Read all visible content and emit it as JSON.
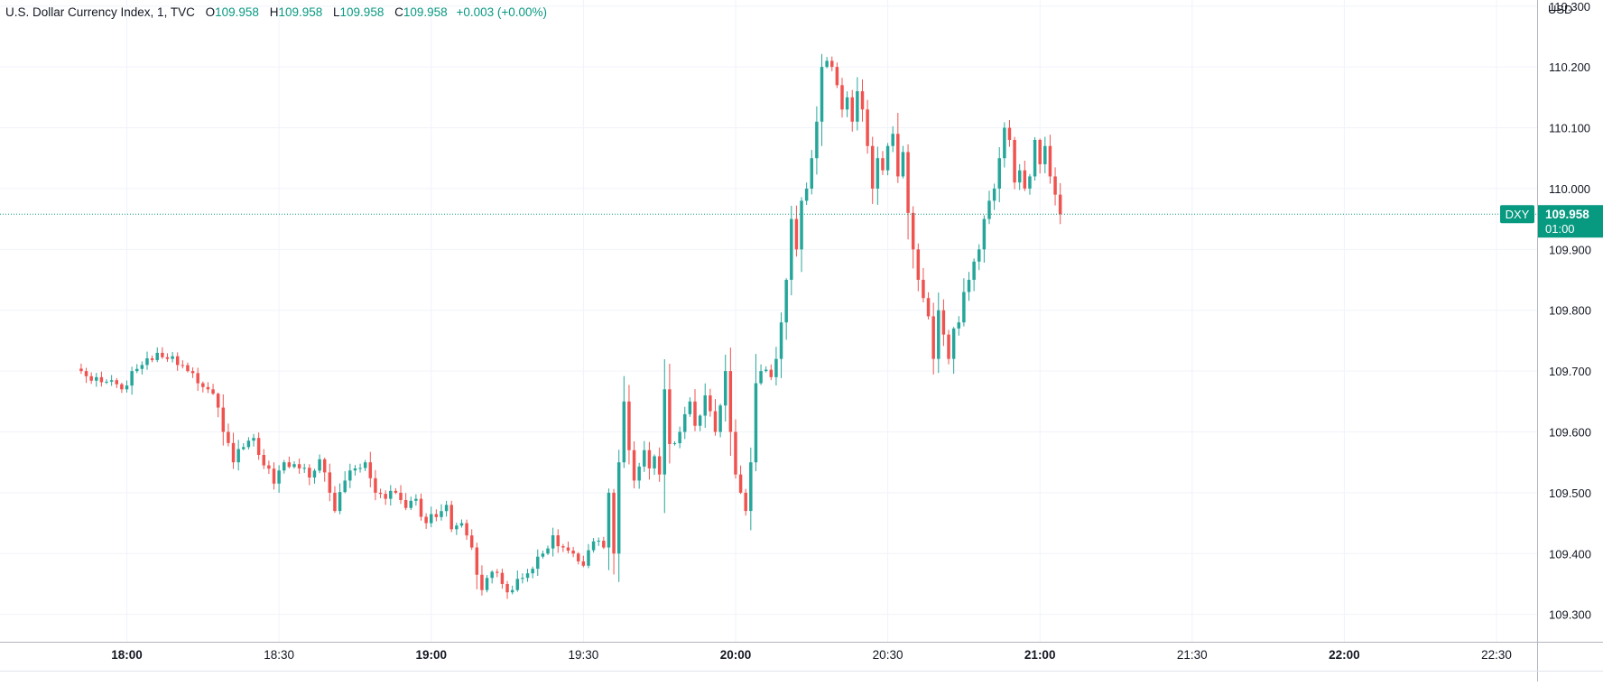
{
  "legend": {
    "name": "U.S. Dollar Currency Index, 1, TVC",
    "o_label": "O",
    "o": "109.958",
    "h_label": "H",
    "h": "109.958",
    "l_label": "L",
    "l": "109.958",
    "c_label": "C",
    "c": "109.958",
    "change": "+0.003 (+0.00%)"
  },
  "currency": "USD",
  "price_tag": {
    "symbol": "DXY",
    "price": "109.958",
    "countdown": "01:00"
  },
  "colors": {
    "up": "#26a69a",
    "down": "#ef5350",
    "price_tag_bg": "#089981",
    "grid": "#f0f3fa",
    "axis_text": "#131722",
    "price_line": "#089981"
  },
  "chart_data": {
    "type": "candlestick",
    "title": "U.S. Dollar Currency Index",
    "interval": "1",
    "source": "TVC",
    "ylim": [
      109.255,
      110.31
    ],
    "y_ticks": [
      "110.300",
      "110.200",
      "110.100",
      "110.000",
      "109.900",
      "109.800",
      "109.700",
      "109.600",
      "109.500",
      "109.400",
      "109.300"
    ],
    "x_range_minutes": [
      1055,
      1358
    ],
    "x_ticks": [
      {
        "label": "18:00",
        "minute": 1080,
        "bold": true
      },
      {
        "label": "18:30",
        "minute": 1110,
        "bold": false
      },
      {
        "label": "19:00",
        "minute": 1140,
        "bold": true
      },
      {
        "label": "19:30",
        "minute": 1170,
        "bold": false
      },
      {
        "label": "20:00",
        "minute": 1200,
        "bold": true
      },
      {
        "label": "20:30",
        "minute": 1230,
        "bold": false
      },
      {
        "label": "21:00",
        "minute": 1260,
        "bold": true
      },
      {
        "label": "21:30",
        "minute": 1290,
        "bold": false
      },
      {
        "label": "22:00",
        "minute": 1320,
        "bold": true
      },
      {
        "label": "22:30",
        "minute": 1350,
        "bold": false
      }
    ],
    "start_time": "17:51",
    "last_price": 109.958,
    "close_path": [
      [
        0,
        109.7
      ],
      [
        3,
        109.69
      ],
      [
        6,
        109.685
      ],
      [
        8,
        109.67
      ],
      [
        10,
        109.7
      ],
      [
        12,
        109.71
      ],
      [
        15,
        109.73
      ],
      [
        17,
        109.72
      ],
      [
        19,
        109.71
      ],
      [
        21,
        109.7
      ],
      [
        23,
        109.68
      ],
      [
        25,
        109.67
      ],
      [
        27,
        109.64
      ],
      [
        28,
        109.6
      ],
      [
        30,
        109.55
      ],
      [
        32,
        109.575
      ],
      [
        34,
        109.59
      ],
      [
        36,
        109.545
      ],
      [
        38,
        109.515
      ],
      [
        40,
        109.55
      ],
      [
        43,
        109.54
      ],
      [
        45,
        109.525
      ],
      [
        47,
        109.555
      ],
      [
        49,
        109.5
      ],
      [
        50,
        109.47
      ],
      [
        52,
        109.52
      ],
      [
        54,
        109.54
      ],
      [
        56,
        109.55
      ],
      [
        58,
        109.5
      ],
      [
        60,
        109.49
      ],
      [
        62,
        109.5
      ],
      [
        64,
        109.475
      ],
      [
        66,
        109.49
      ],
      [
        68,
        109.45
      ],
      [
        70,
        109.46
      ],
      [
        72,
        109.48
      ],
      [
        73,
        109.44
      ],
      [
        75,
        109.45
      ],
      [
        77,
        109.41
      ],
      [
        79,
        109.34
      ],
      [
        81,
        109.37
      ],
      [
        83,
        109.35
      ],
      [
        85,
        109.34
      ],
      [
        87,
        109.36
      ],
      [
        89,
        109.375
      ],
      [
        91,
        109.4
      ],
      [
        93,
        109.43
      ],
      [
        95,
        109.41
      ],
      [
        97,
        109.4
      ],
      [
        99,
        109.38
      ],
      [
        101,
        109.42
      ],
      [
        103,
        109.41
      ],
      [
        104,
        109.5
      ],
      [
        105,
        109.4
      ],
      [
        106,
        109.55
      ],
      [
        107,
        109.65
      ],
      [
        108,
        109.57
      ],
      [
        109,
        109.52
      ],
      [
        111,
        109.57
      ],
      [
        112,
        109.54
      ],
      [
        113,
        109.56
      ],
      [
        114,
        109.53
      ],
      [
        115,
        109.67
      ],
      [
        116,
        109.58
      ],
      [
        118,
        109.6
      ],
      [
        120,
        109.65
      ],
      [
        121,
        109.61
      ],
      [
        123,
        109.66
      ],
      [
        125,
        109.6
      ],
      [
        127,
        109.7
      ],
      [
        128,
        109.6
      ],
      [
        129,
        109.53
      ],
      [
        130,
        109.5
      ],
      [
        131,
        109.47
      ],
      [
        132,
        109.55
      ],
      [
        133,
        109.68
      ],
      [
        134,
        109.7
      ],
      [
        136,
        109.69
      ],
      [
        137,
        109.72
      ],
      [
        138,
        109.78
      ],
      [
        139,
        109.85
      ],
      [
        140,
        109.95
      ],
      [
        141,
        109.9
      ],
      [
        142,
        109.98
      ],
      [
        143,
        110.0
      ],
      [
        144,
        110.05
      ],
      [
        145,
        110.11
      ],
      [
        146,
        110.2
      ],
      [
        147,
        110.21
      ],
      [
        148,
        110.2
      ],
      [
        149,
        110.17
      ],
      [
        150,
        110.13
      ],
      [
        151,
        110.15
      ],
      [
        152,
        110.11
      ],
      [
        153,
        110.16
      ],
      [
        154,
        110.13
      ],
      [
        155,
        110.07
      ],
      [
        156,
        110.0
      ],
      [
        157,
        110.05
      ],
      [
        158,
        110.03
      ],
      [
        159,
        110.07
      ],
      [
        160,
        110.09
      ],
      [
        161,
        110.02
      ],
      [
        162,
        110.06
      ],
      [
        163,
        109.96
      ],
      [
        164,
        109.9
      ],
      [
        165,
        109.85
      ],
      [
        166,
        109.82
      ],
      [
        167,
        109.79
      ],
      [
        168,
        109.72
      ],
      [
        169,
        109.8
      ],
      [
        170,
        109.76
      ],
      [
        171,
        109.72
      ],
      [
        172,
        109.77
      ],
      [
        173,
        109.78
      ],
      [
        174,
        109.83
      ],
      [
        175,
        109.85
      ],
      [
        176,
        109.88
      ],
      [
        177,
        109.9
      ],
      [
        178,
        109.95
      ],
      [
        179,
        109.98
      ],
      [
        180,
        110.0
      ],
      [
        181,
        110.05
      ],
      [
        182,
        110.1
      ],
      [
        183,
        110.08
      ],
      [
        184,
        110.01
      ],
      [
        185,
        110.03
      ],
      [
        186,
        110.0
      ],
      [
        187,
        110.02
      ],
      [
        188,
        110.08
      ],
      [
        189,
        110.04
      ],
      [
        190,
        110.07
      ],
      [
        191,
        110.02
      ],
      [
        192,
        109.99
      ],
      [
        193,
        109.958
      ]
    ]
  }
}
